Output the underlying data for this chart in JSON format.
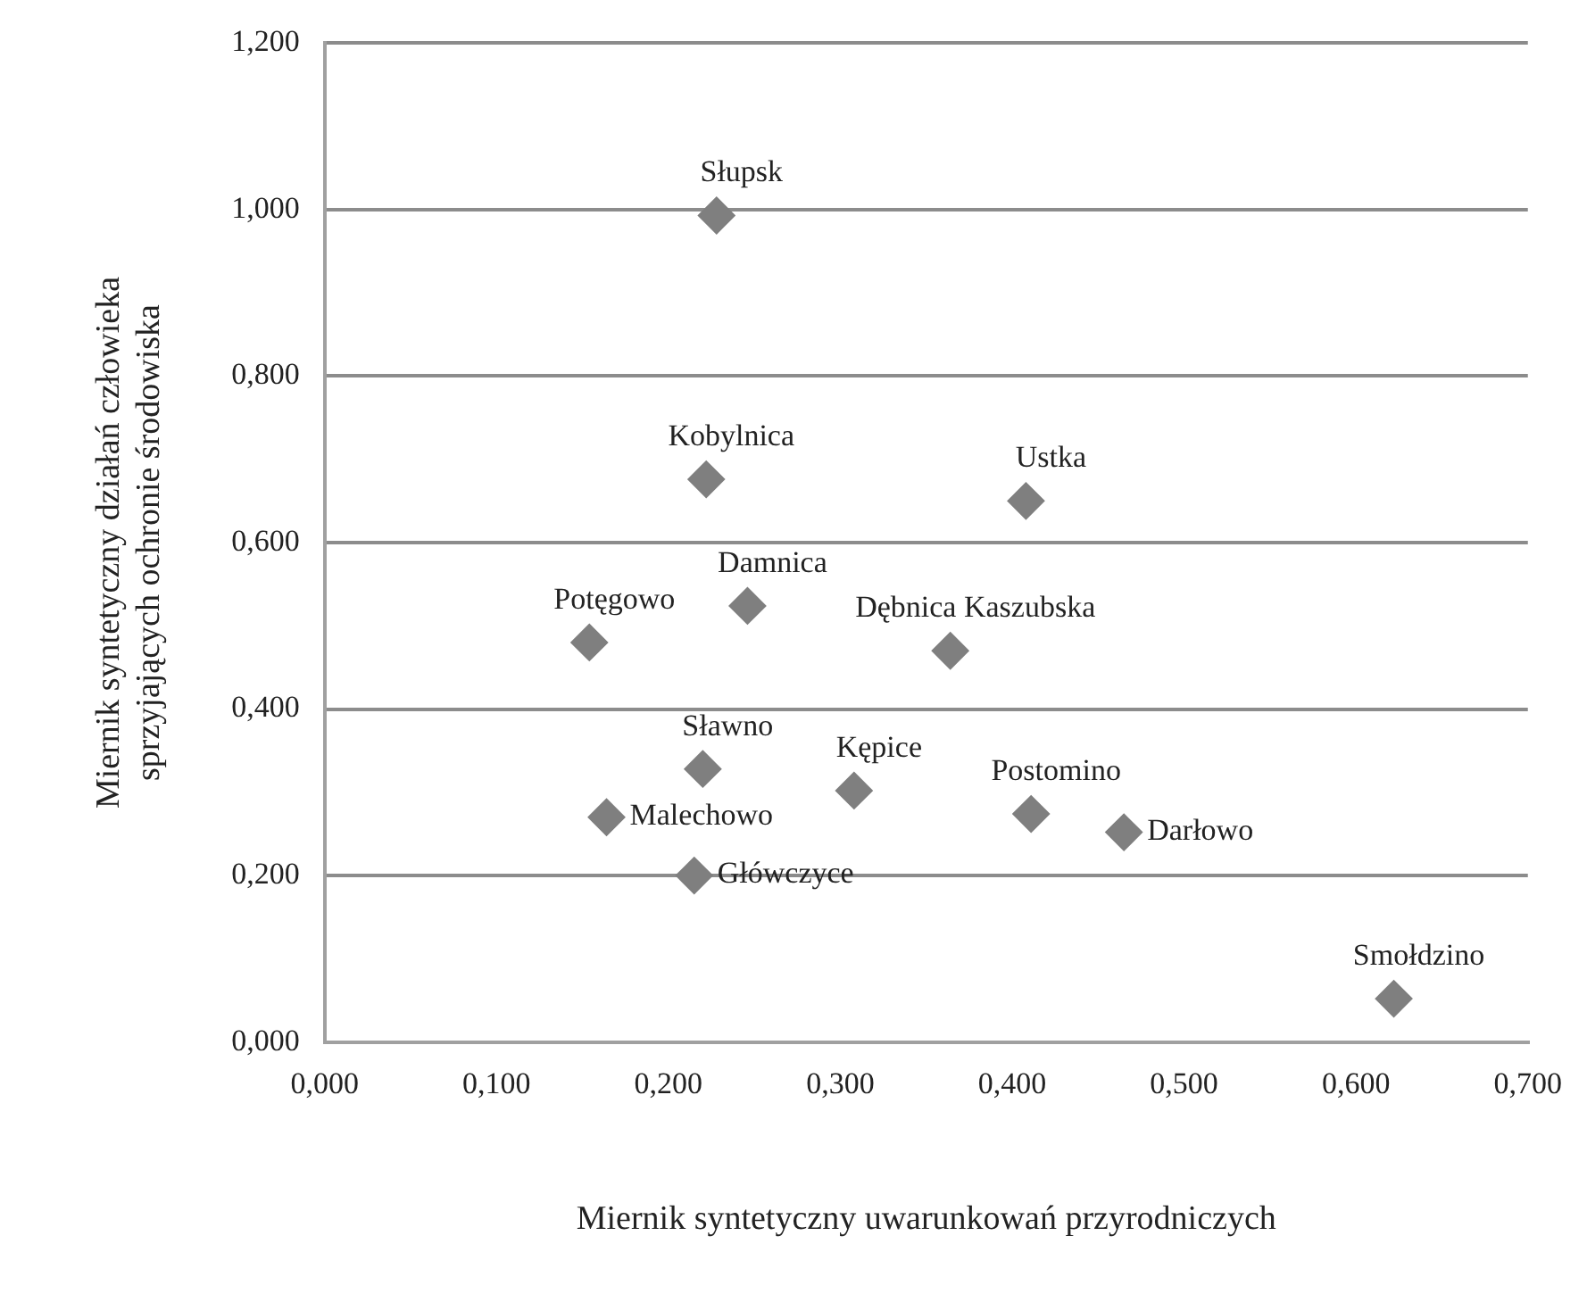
{
  "chart_data": {
    "type": "scatter",
    "xlabel": "Miernik syntetyczny uwarunkowań przyrodniczych",
    "ylabel": "Miernik syntetyczny działań człowieka\nsprzyjających ochronie środowiska",
    "series": [
      {
        "color": "#7f7f7f",
        "x": [
          0.228,
          0.222,
          0.408,
          0.154,
          0.246,
          0.364,
          0.22,
          0.164,
          0.215,
          0.308,
          0.411,
          0.465,
          0.622
        ],
        "values": [
          0.993,
          0.676,
          0.65,
          0.48,
          0.524,
          0.47,
          0.328,
          0.27,
          0.2,
          0.302,
          0.274,
          0.252,
          0.052
        ]
      }
    ],
    "annotations": [
      {
        "text": "Słupsk",
        "x": 0.228,
        "y": 0.993
      },
      {
        "text": "Kobylnica",
        "x": 0.222,
        "y": 0.676
      },
      {
        "text": "Ustka",
        "x": 0.408,
        "y": 0.65
      },
      {
        "text": "Potęgowo",
        "x": 0.154,
        "y": 0.48
      },
      {
        "text": "Damnica",
        "x": 0.246,
        "y": 0.524
      },
      {
        "text": "Dębnica Kaszubska",
        "x": 0.364,
        "y": 0.47
      },
      {
        "text": "Sławno",
        "x": 0.22,
        "y": 0.328
      },
      {
        "text": "Malechowo",
        "x": 0.164,
        "y": 0.27
      },
      {
        "text": "Główczyce",
        "x": 0.215,
        "y": 0.2
      },
      {
        "text": "Kępice",
        "x": 0.308,
        "y": 0.302
      },
      {
        "text": "Postomino",
        "x": 0.411,
        "y": 0.274
      },
      {
        "text": "Darłowo",
        "x": 0.465,
        "y": 0.252
      },
      {
        "text": "Smołdzino",
        "x": 0.622,
        "y": 0.052
      }
    ],
    "xlim": [
      0,
      0.7
    ],
    "xticks": [
      {
        "value": 0,
        "label": "0,000"
      },
      {
        "value": 0.1,
        "label": "0,100"
      },
      {
        "value": 0.2,
        "label": "0,200"
      },
      {
        "value": 0.3,
        "label": "0,300"
      },
      {
        "value": 0.4,
        "label": "0,400"
      },
      {
        "value": 0.5,
        "label": "0,500"
      },
      {
        "value": 0.6,
        "label": "0,600"
      },
      {
        "value": 0.7,
        "label": "0,700"
      }
    ],
    "ylim": [
      0,
      1.2
    ],
    "yticks": [
      {
        "value": 0,
        "label": "0,000"
      },
      {
        "value": 0.2,
        "label": "0,200"
      },
      {
        "value": 0.4,
        "label": "0,400"
      },
      {
        "value": 0.6,
        "label": "0,600"
      },
      {
        "value": 0.8,
        "label": "0,800"
      },
      {
        "value": 1,
        "label": "1,000"
      },
      {
        "value": 1.2,
        "label": "1,200"
      }
    ],
    "grid": "y",
    "legend": false,
    "marker": "diamond"
  }
}
